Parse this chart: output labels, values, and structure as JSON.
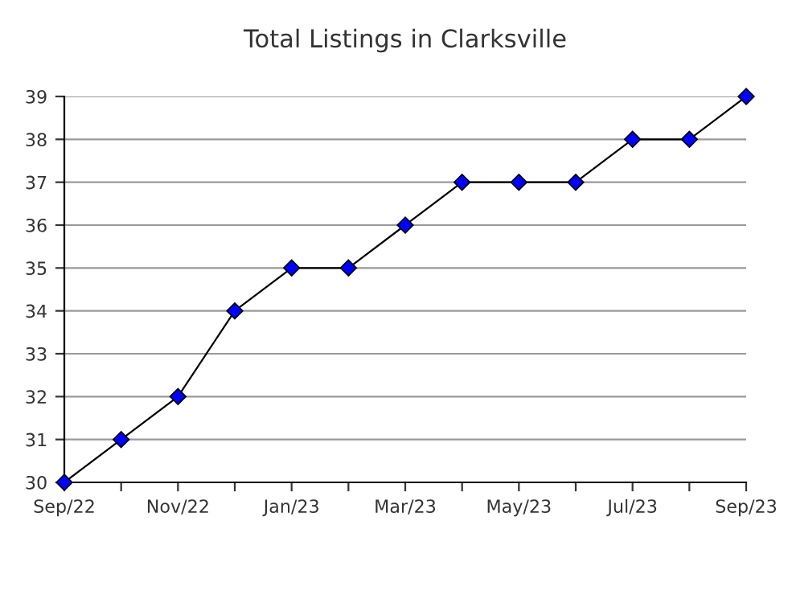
{
  "chart_data": {
    "type": "line",
    "title": "Total Listings in Clarksville",
    "categories": [
      "Sep/22",
      null,
      "Nov/22",
      null,
      "Jan/23",
      null,
      "Mar/23",
      null,
      "May/23",
      null,
      "Jul/23",
      null,
      "Sep/23"
    ],
    "series": [
      {
        "color": "#0000ff",
        "values": [
          30,
          31,
          32,
          34,
          35,
          35,
          36,
          37,
          37,
          37,
          38,
          38,
          39
        ]
      }
    ],
    "ylim": [
      30,
      39
    ],
    "yticks": [
      30,
      31,
      32,
      33,
      34,
      35,
      36,
      37,
      38,
      39
    ],
    "grid": "y",
    "marker": "diamond",
    "line_style": "solid"
  }
}
